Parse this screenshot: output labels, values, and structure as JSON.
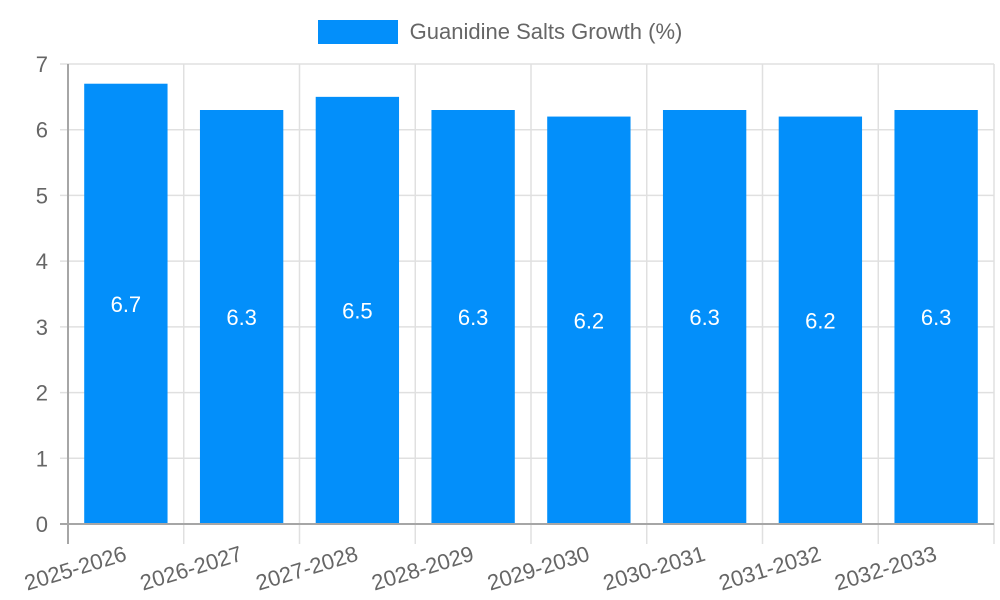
{
  "chart_data": {
    "type": "bar",
    "title": "",
    "xlabel": "",
    "ylabel": "",
    "categories": [
      "2025-2026",
      "2026-2027",
      "2027-2028",
      "2028-2029",
      "2029-2030",
      "2030-2031",
      "2031-2032",
      "2032-2033"
    ],
    "series": [
      {
        "name": "Guanidine Salts Growth (%)",
        "values": [
          6.7,
          6.3,
          6.5,
          6.3,
          6.2,
          6.3,
          6.2,
          6.3
        ],
        "color": "#038ffa"
      }
    ],
    "ylim": [
      0,
      7
    ],
    "yticks": [
      0,
      1,
      2,
      3,
      4,
      5,
      6,
      7
    ],
    "grid": true,
    "legend_position": "top",
    "data_labels": [
      "6.7",
      "6.3",
      "6.5",
      "6.3",
      "6.2",
      "6.3",
      "6.2",
      "6.3"
    ]
  },
  "legend": {
    "label": "Guanidine Salts Growth (%)",
    "color": "#038ffa"
  },
  "colors": {
    "bar": "#038ffa",
    "grid": "#e0e0e0",
    "axis": "#a6a6a6",
    "tick_text": "#666666",
    "data_label": "#ffffff"
  }
}
